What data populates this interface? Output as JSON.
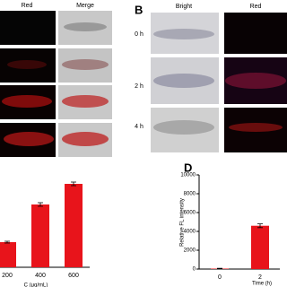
{
  "panel_a": {
    "headers": [
      "Red",
      "Merge"
    ]
  },
  "panel_b": {
    "label": "B",
    "headers": [
      "Bright",
      "Red"
    ],
    "rows": [
      "0 h",
      "2 h",
      "4 h"
    ]
  },
  "chart_data": [
    {
      "type": "bar",
      "xlabel": "C (μg/mL)",
      "categories": [
        "200",
        "400",
        "600"
      ],
      "values": [
        28,
        70,
        93
      ],
      "errors": [
        1,
        2,
        2
      ],
      "color": "#e8141b",
      "ylim": [
        0,
        118
      ]
    },
    {
      "type": "bar",
      "label": "D",
      "ylabel": "Relative FL intensity",
      "xlabel": "Time (h)",
      "categories": [
        "0",
        "2"
      ],
      "values": [
        50,
        4600
      ],
      "errors": [
        30,
        200
      ],
      "color": "#e8141b",
      "ylim": [
        0,
        10000
      ],
      "yticks": [
        0,
        2000,
        4000,
        6000,
        8000,
        10000
      ]
    }
  ]
}
